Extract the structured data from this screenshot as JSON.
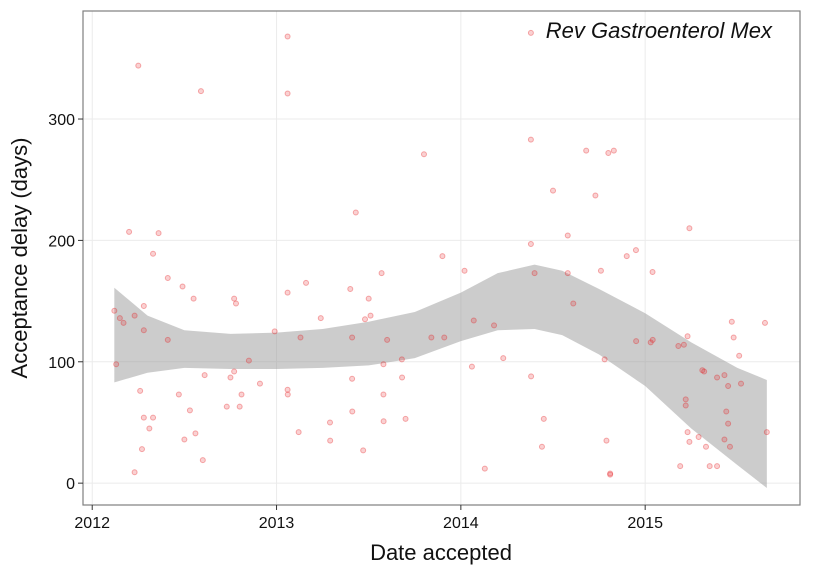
{
  "chart_data": {
    "type": "scatter",
    "annotation": "Rev Gastroenterol Mex",
    "x_label": "Date accepted",
    "y_label": "Acceptance delay (days)",
    "xlim": [
      2011.95,
      2015.84
    ],
    "ylim": [
      -18,
      389
    ],
    "xticks": [
      2012,
      2013,
      2014,
      2015
    ],
    "yticks": [
      0,
      100,
      200,
      300
    ],
    "grid": true,
    "color": "#e41a1c",
    "x": [
      2012.12,
      2012.13,
      2012.15,
      2012.17,
      2012.2,
      2012.23,
      2012.23,
      2012.25,
      2012.26,
      2012.27,
      2012.28,
      2012.28,
      2012.28,
      2012.31,
      2012.33,
      2012.33,
      2012.36,
      2012.41,
      2012.41,
      2012.47,
      2012.49,
      2012.5,
      2012.53,
      2012.55,
      2012.56,
      2012.6,
      2012.59,
      2012.61,
      2012.73,
      2012.75,
      2012.77,
      2012.77,
      2012.78,
      2012.8,
      2012.81,
      2012.85,
      2012.91,
      2012.99,
      2013.06,
      2013.06,
      2013.06,
      2013.06,
      2013.061,
      2013.12,
      2013.13,
      2013.16,
      2013.24,
      2013.29,
      2013.291,
      2013.4,
      2013.41,
      2013.41,
      2013.411,
      2013.43,
      2013.47,
      2013.48,
      2013.5,
      2013.51,
      2013.57,
      2013.58,
      2013.58,
      2013.581,
      2013.6,
      2013.68,
      2013.681,
      2013.7,
      2013.8,
      2013.84,
      2013.9,
      2013.91,
      2014.02,
      2014.06,
      2014.07,
      2014.13,
      2014.18,
      2014.23,
      2014.38,
      2014.38,
      2014.38,
      2014.381,
      2014.4,
      2014.44,
      2014.45,
      2014.5,
      2014.58,
      2014.58,
      2014.61,
      2014.68,
      2014.73,
      2014.76,
      2014.78,
      2014.79,
      2014.8,
      2014.81,
      2014.81,
      2014.83,
      2014.9,
      2014.95,
      2014.951,
      2015.03,
      2015.04,
      2015.041,
      2015.18,
      2015.19,
      2015.21,
      2015.22,
      2015.22,
      2015.23,
      2015.23,
      2015.24,
      2015.24,
      2015.29,
      2015.31,
      2015.32,
      2015.33,
      2015.35,
      2015.39,
      2015.39,
      2015.43,
      2015.43,
      2015.44,
      2015.45,
      2015.45,
      2015.46,
      2015.47,
      2015.48,
      2015.51,
      2015.52,
      2015.65,
      2015.66
    ],
    "values": [
      142,
      98,
      136,
      132,
      207,
      138,
      9,
      344,
      76,
      28,
      54,
      146,
      126,
      45,
      189,
      54,
      206,
      169,
      118,
      73,
      162,
      36,
      60,
      152,
      41,
      19,
      323,
      89,
      63,
      87,
      152,
      92,
      148,
      63,
      73,
      101,
      82,
      125,
      368,
      321,
      157,
      77,
      73,
      42,
      120,
      165,
      136,
      50,
      35,
      160,
      86,
      120,
      59,
      223,
      27,
      135,
      152,
      138,
      173,
      98,
      73,
      51,
      118,
      102,
      87,
      53,
      271,
      120,
      187,
      120,
      175,
      96,
      134,
      12,
      130,
      103,
      371,
      283,
      197,
      88,
      173,
      30,
      53,
      241,
      204,
      173,
      148,
      274,
      237,
      175,
      102,
      35,
      272,
      7,
      8,
      274,
      187,
      192,
      117,
      116,
      174,
      118,
      113,
      14,
      114,
      69,
      64,
      121,
      42,
      210,
      34,
      38,
      93,
      92,
      30,
      14,
      14,
      87,
      89,
      36,
      59,
      49,
      80,
      30,
      133,
      120,
      105,
      82,
      132,
      42
    ],
    "band": {
      "color": "#999999",
      "x": [
        2012.12,
        2012.3,
        2012.5,
        2012.75,
        2013.0,
        2013.25,
        2013.5,
        2013.75,
        2014.0,
        2014.2,
        2014.4,
        2014.55,
        2014.75,
        2015.0,
        2015.25,
        2015.5,
        2015.66
      ],
      "upper": [
        161,
        138,
        126,
        123,
        124,
        127,
        133,
        141,
        157,
        173,
        180,
        175,
        160,
        140,
        116,
        95,
        85
      ],
      "lower": [
        83,
        91,
        95,
        94,
        94,
        95,
        97,
        103,
        117,
        126,
        127,
        122,
        106,
        80,
        45,
        15,
        -4
      ]
    }
  }
}
